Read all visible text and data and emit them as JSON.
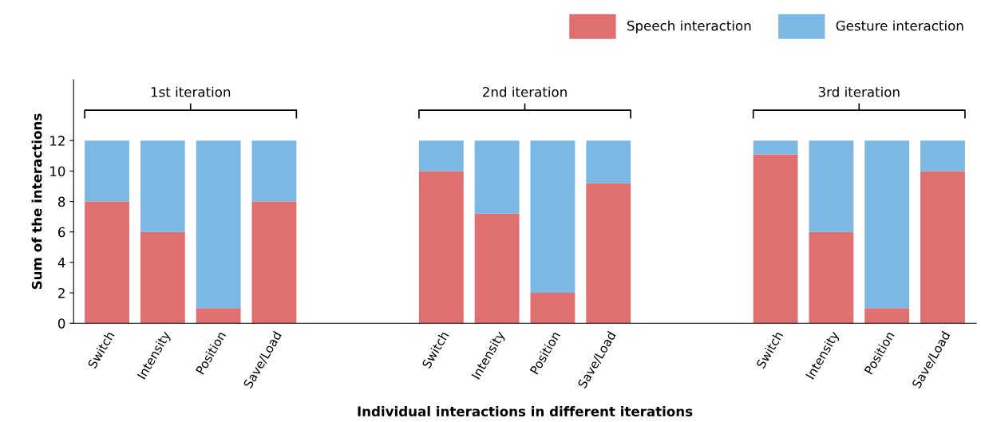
{
  "chart_data": {
    "type": "bar",
    "stacked": true,
    "xlabel": "Individual interactions in different iterations",
    "ylabel": "Sum of the interactions",
    "categories": [
      "Switch",
      "Intensity",
      "Position",
      "Save/Load",
      null,
      null,
      "Switch",
      "Intensity",
      "Position",
      "Save/Load",
      null,
      null,
      "Switch",
      "Intensity",
      "Position",
      "Save/Load"
    ],
    "series": [
      {
        "name": "Speech interaction",
        "color": "#e07070",
        "values": [
          8,
          6,
          1,
          8,
          null,
          null,
          10,
          7.2,
          2,
          9.2,
          null,
          null,
          11.1,
          6,
          1,
          10
        ]
      },
      {
        "name": "Gesture interaction",
        "color": "#7bb8e3",
        "values": [
          4,
          6,
          11,
          4,
          null,
          null,
          2,
          4.8,
          10,
          2.8,
          null,
          null,
          0.9,
          6,
          11,
          2
        ]
      }
    ],
    "annotations": [
      "1st iteration",
      "2nd iteration",
      "3rd iteration"
    ],
    "ylim": [
      0,
      16
    ],
    "yticks": [
      0,
      2,
      4,
      6,
      8,
      10,
      12
    ],
    "grid": false,
    "legend": "top right"
  }
}
